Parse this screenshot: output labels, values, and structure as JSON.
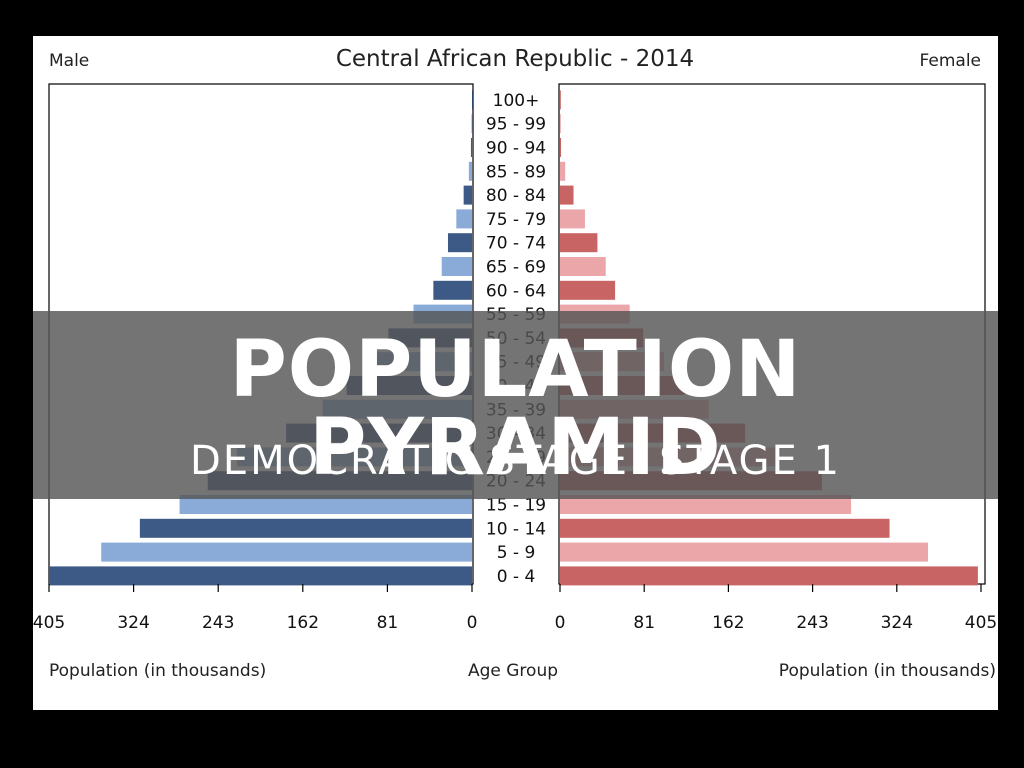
{
  "banner": {
    "title": "POPULATION PYRAMID",
    "subtitle": "DEMOCRATIC STAGE: STAGE 1"
  },
  "chart_data": {
    "type": "bar",
    "title": "Central African Republic - 2014",
    "left_label": "Male",
    "right_label": "Female",
    "xlabel_left": "Population (in thousands)",
    "xlabel_center": "Age Group",
    "xlabel_right": "Population (in thousands)",
    "ticks": [
      0,
      81,
      162,
      243,
      324,
      405
    ],
    "xlim": [
      0,
      405
    ],
    "categories": [
      "100+",
      "95 - 99",
      "90 - 94",
      "85 - 89",
      "80 - 84",
      "75 - 79",
      "70 - 74",
      "65 - 69",
      "60 - 64",
      "55 - 59",
      "50 - 54",
      "45 - 49",
      "40 - 44",
      "35 - 39",
      "30 - 34",
      "25 - 29",
      "20 - 24",
      "15 - 19",
      "10 - 14",
      "5 - 9",
      "0 - 4"
    ],
    "series": [
      {
        "name": "Male",
        "values": [
          0,
          0.5,
          1,
          3,
          8,
          15,
          23,
          29,
          37,
          56,
          80,
          102,
          120,
          143,
          178,
          225,
          253,
          280,
          318,
          355,
          405
        ]
      },
      {
        "name": "Female",
        "values": [
          0,
          0.5,
          1,
          5,
          13,
          24,
          36,
          44,
          53,
          67,
          80,
          100,
          120,
          143,
          178,
          212,
          252,
          280,
          317,
          354,
          402
        ]
      }
    ],
    "colors": {
      "male_dark": "#3d5a87",
      "male_light": "#8aabd8",
      "female_dark": "#c86464",
      "female_light": "#eba6aa"
    }
  }
}
